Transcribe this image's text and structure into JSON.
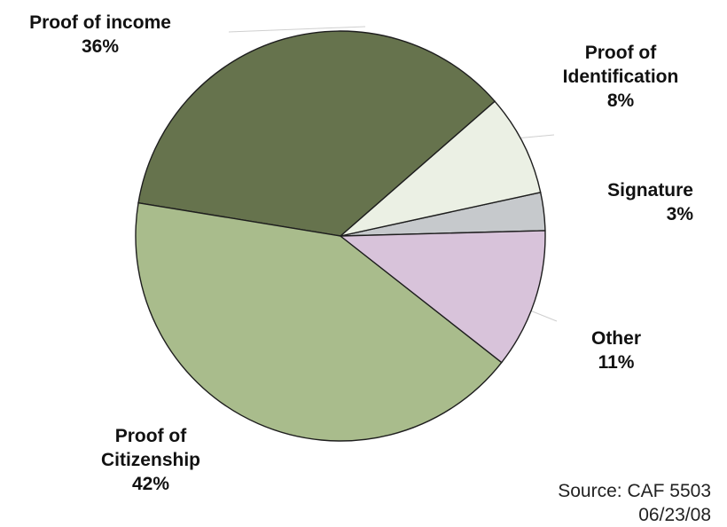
{
  "chart_data": {
    "type": "pie",
    "title": "",
    "slices": [
      {
        "label_lines": [
          "Proof of income"
        ],
        "pct_label": "36%",
        "value": 36,
        "color": "#66734d"
      },
      {
        "label_lines": [
          "Proof of",
          "Identification"
        ],
        "pct_label": "8%",
        "value": 8,
        "color": "#ebf0e4"
      },
      {
        "label_lines": [
          "Signature"
        ],
        "pct_label": "3%",
        "value": 3,
        "color": "#c6c9cc"
      },
      {
        "label_lines": [
          "Other"
        ],
        "pct_label": "11%",
        "value": 11,
        "color": "#d8c3da"
      },
      {
        "label_lines": [
          "Proof of",
          "Citizenship"
        ],
        "pct_label": "42%",
        "value": 42,
        "color": "#a9bc8c"
      }
    ]
  },
  "source": {
    "line1": "Source: CAF 5503",
    "line2": "06/23/08"
  }
}
